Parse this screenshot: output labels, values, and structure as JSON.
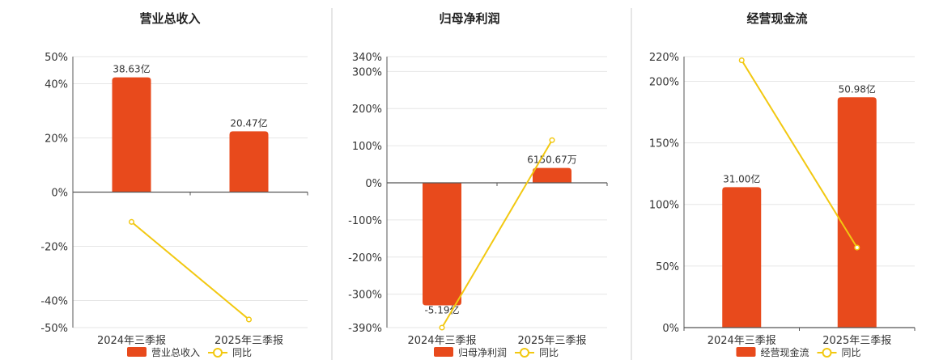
{
  "colors": {
    "bar": "#e84a1c",
    "line": "#f2c811",
    "grid": "#e6e6e6",
    "axis": "#555555",
    "divider": "#cccccc"
  },
  "chart_data": [
    {
      "type": "bar",
      "title": "营业总收入",
      "categories": [
        "2024年三季报",
        "2025年三季报"
      ],
      "series": [
        {
          "name": "营业总收入",
          "type": "bar",
          "values": [
            0.4236,
            0.2241
          ],
          "labels": [
            "38.63亿",
            "20.47亿"
          ]
        },
        {
          "name": "同比",
          "type": "line",
          "values": [
            -0.11,
            -0.47
          ]
        }
      ],
      "yticks": [
        {
          "value": 0.5,
          "label": "50%"
        },
        {
          "value": 0.4,
          "label": "40%"
        },
        {
          "value": 0.2,
          "label": "20%"
        },
        {
          "value": 0,
          "label": "0%"
        },
        {
          "value": -0.2,
          "label": "-20%"
        },
        {
          "value": -0.4,
          "label": "-40%"
        },
        {
          "value": -0.5,
          "label": "-50%"
        }
      ],
      "ylim": [
        -0.5,
        0.5
      ]
    },
    {
      "type": "bar",
      "title": "归母净利润",
      "categories": [
        "2024年三季报",
        "2025年三季报"
      ],
      "series": [
        {
          "name": "归母净利润",
          "type": "bar",
          "values": [
            -3.3,
            0.4
          ],
          "labels": [
            "-5.19亿",
            "6150.67万"
          ]
        },
        {
          "name": "同比",
          "type": "line",
          "values": [
            -3.9,
            1.15
          ]
        }
      ],
      "yticks": [
        {
          "value": 3.4,
          "label": "340%"
        },
        {
          "value": 3.0,
          "label": "300%"
        },
        {
          "value": 2.0,
          "label": "200%"
        },
        {
          "value": 1.0,
          "label": "100%"
        },
        {
          "value": 0,
          "label": "0%"
        },
        {
          "value": -1.0,
          "label": "-100%"
        },
        {
          "value": -2.0,
          "label": "-200%"
        },
        {
          "value": -3.0,
          "label": "-300%"
        },
        {
          "value": -3.9,
          "label": "-390%"
        }
      ],
      "ylim": [
        -3.9,
        3.4
      ]
    },
    {
      "type": "bar",
      "title": "经营现金流",
      "categories": [
        "2024年三季报",
        "2025年三季报"
      ],
      "series": [
        {
          "name": "经营现金流",
          "type": "bar",
          "values": [
            1.14,
            1.87
          ],
          "labels": [
            "31.00亿",
            "50.98亿"
          ]
        },
        {
          "name": "同比",
          "type": "line",
          "values": [
            2.17,
            0.65
          ]
        }
      ],
      "yticks": [
        {
          "value": 2.2,
          "label": "220%"
        },
        {
          "value": 2.0,
          "label": "200%"
        },
        {
          "value": 1.5,
          "label": "150%"
        },
        {
          "value": 1.0,
          "label": "100%"
        },
        {
          "value": 0.5,
          "label": "50%"
        },
        {
          "value": 0,
          "label": "0%"
        }
      ],
      "ylim": [
        0,
        2.2
      ]
    }
  ]
}
